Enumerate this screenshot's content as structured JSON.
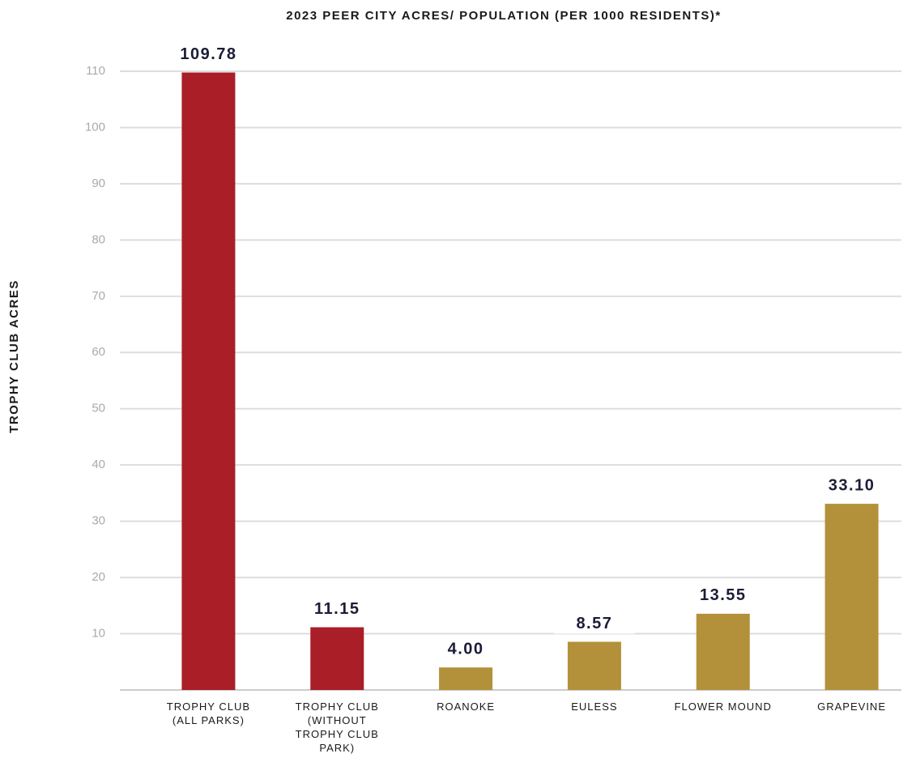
{
  "chart_data": {
    "type": "bar",
    "title": "2023 PEER CITY ACRES/ POPULATION (PER 1000 RESIDENTS)*",
    "y_label": "TROPHY CLUB ACRES",
    "categories": [
      "TROPHY CLUB (ALL PARKS)",
      "TROPHY CLUB (WITHOUT TROPHY CLUB PARK)",
      "ROANOKE",
      "EULESS",
      "FLOWER MOUND",
      "GRAPEVINE"
    ],
    "values": [
      109.78,
      11.15,
      4.0,
      8.57,
      13.55,
      33.1
    ],
    "value_labels": [
      "109.78",
      "11.15",
      "4.00",
      "8.57",
      "13.55",
      "33.10"
    ],
    "colors": [
      "#a91e27",
      "#a91e27",
      "#b3913a",
      "#b3913a",
      "#b3913a",
      "#b3913a"
    ],
    "ylim": [
      0,
      110
    ],
    "yticks": [
      10,
      20,
      30,
      40,
      50,
      60,
      70,
      80,
      90,
      100,
      110
    ],
    "grid": true
  }
}
